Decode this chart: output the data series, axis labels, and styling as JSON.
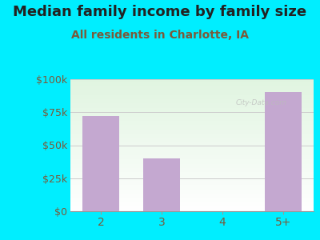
{
  "title": "Median family income by family size",
  "subtitle": "All residents in Charlotte, IA",
  "categories": [
    "2",
    "3",
    "4",
    "5+"
  ],
  "values": [
    72000,
    40000,
    0,
    90000
  ],
  "bar_color": "#c4a8d0",
  "background_color": "#00eeff",
  "title_color": "#222222",
  "subtitle_color": "#7a5a3a",
  "tick_label_color": "#7a5a3a",
  "ytick_labels": [
    "$0",
    "$25k",
    "$50k",
    "$75k",
    "$100k"
  ],
  "ytick_values": [
    0,
    25000,
    50000,
    75000,
    100000
  ],
  "ylim": [
    0,
    100000
  ],
  "title_fontsize": 13,
  "subtitle_fontsize": 10,
  "watermark": "City-Data.com",
  "grid_color": "#cccccc",
  "plot_bg_left": "#e8f5e8",
  "plot_bg_right": "#f0f8f0"
}
